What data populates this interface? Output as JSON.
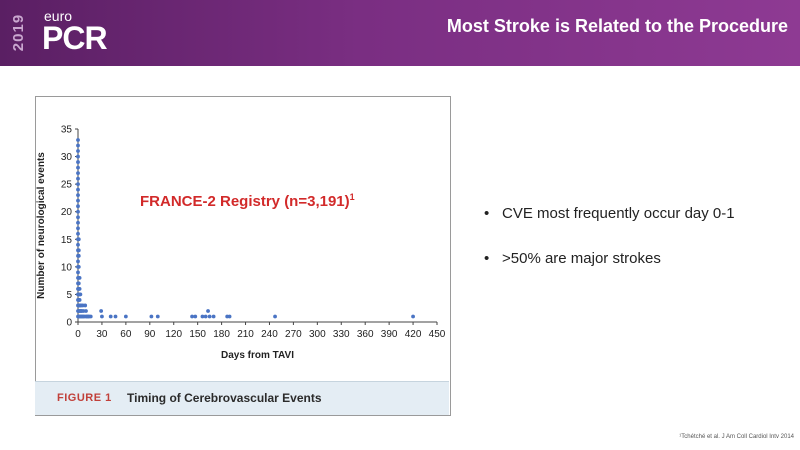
{
  "header": {
    "logo_year": "2019",
    "logo_euro": "euro",
    "logo_pcr": "PCR",
    "title": "Most Stroke is Related to the Procedure"
  },
  "figure": {
    "label": "FIGURE 1",
    "title": "Timing of Cerebrovascular Events",
    "annotation": "FRANCE-2 Registry (n=3,191)",
    "annotation_sup": "1"
  },
  "bullets": [
    "CVE most frequently occur day 0-1",
    ">50% are major strokes"
  ],
  "reference": "¹Tchétché et al. J Am Coll Cardiol Intv 2014",
  "colors": {
    "header_start": "#5a1f63",
    "header_end": "#8e3a93",
    "marker": "#4a74c4",
    "annotation": "#d22a2a"
  },
  "chart_data": {
    "type": "scatter",
    "title": "",
    "xlabel": "Days from TAVI",
    "ylabel": "Number of neurological events",
    "xlim": [
      0,
      450
    ],
    "ylim": [
      0,
      35
    ],
    "xticks": [
      0,
      30,
      60,
      90,
      120,
      150,
      180,
      210,
      240,
      270,
      300,
      330,
      360,
      390,
      420,
      450
    ],
    "yticks": [
      0,
      5,
      10,
      15,
      20,
      25,
      30,
      35
    ],
    "grid": false,
    "points": [
      {
        "x": 0,
        "y": 33
      },
      {
        "x": 0,
        "y": 32
      },
      {
        "x": 0,
        "y": 31
      },
      {
        "x": 0,
        "y": 30
      },
      {
        "x": 0,
        "y": 29
      },
      {
        "x": 0,
        "y": 28
      },
      {
        "x": 0,
        "y": 27
      },
      {
        "x": 0,
        "y": 26
      },
      {
        "x": 0,
        "y": 25
      },
      {
        "x": 0,
        "y": 24
      },
      {
        "x": 0,
        "y": 23
      },
      {
        "x": 0,
        "y": 22
      },
      {
        "x": 0,
        "y": 21
      },
      {
        "x": 0,
        "y": 20
      },
      {
        "x": 0,
        "y": 19
      },
      {
        "x": 0,
        "y": 18
      },
      {
        "x": 0,
        "y": 17
      },
      {
        "x": 0,
        "y": 16
      },
      {
        "x": 0,
        "y": 15
      },
      {
        "x": 0,
        "y": 14
      },
      {
        "x": 0,
        "y": 13
      },
      {
        "x": 0,
        "y": 12
      },
      {
        "x": 0,
        "y": 11
      },
      {
        "x": 0,
        "y": 10
      },
      {
        "x": 0,
        "y": 9
      },
      {
        "x": 0,
        "y": 8
      },
      {
        "x": 0,
        "y": 7
      },
      {
        "x": 0,
        "y": 6
      },
      {
        "x": 0,
        "y": 5
      },
      {
        "x": 0,
        "y": 4
      },
      {
        "x": 0,
        "y": 3
      },
      {
        "x": 0,
        "y": 2
      },
      {
        "x": 0,
        "y": 1
      },
      {
        "x": 1,
        "y": 15
      },
      {
        "x": 1,
        "y": 13
      },
      {
        "x": 1,
        "y": 12
      },
      {
        "x": 1,
        "y": 10
      },
      {
        "x": 1,
        "y": 8
      },
      {
        "x": 1,
        "y": 7
      },
      {
        "x": 1,
        "y": 6
      },
      {
        "x": 1,
        "y": 5
      },
      {
        "x": 1,
        "y": 4
      },
      {
        "x": 1,
        "y": 3
      },
      {
        "x": 1,
        "y": 2
      },
      {
        "x": 1,
        "y": 1
      },
      {
        "x": 2,
        "y": 8
      },
      {
        "x": 2,
        "y": 6
      },
      {
        "x": 2,
        "y": 5
      },
      {
        "x": 2,
        "y": 4
      },
      {
        "x": 2,
        "y": 3
      },
      {
        "x": 2,
        "y": 2
      },
      {
        "x": 2,
        "y": 1
      },
      {
        "x": 3,
        "y": 5
      },
      {
        "x": 3,
        "y": 3
      },
      {
        "x": 3,
        "y": 2
      },
      {
        "x": 3,
        "y": 1
      },
      {
        "x": 4,
        "y": 3
      },
      {
        "x": 4,
        "y": 2
      },
      {
        "x": 4,
        "y": 1
      },
      {
        "x": 5,
        "y": 2
      },
      {
        "x": 5,
        "y": 1
      },
      {
        "x": 6,
        "y": 3
      },
      {
        "x": 6,
        "y": 1
      },
      {
        "x": 7,
        "y": 2
      },
      {
        "x": 7,
        "y": 1
      },
      {
        "x": 8,
        "y": 1
      },
      {
        "x": 9,
        "y": 3
      },
      {
        "x": 10,
        "y": 2
      },
      {
        "x": 10,
        "y": 1
      },
      {
        "x": 11,
        "y": 1
      },
      {
        "x": 12,
        "y": 1
      },
      {
        "x": 13,
        "y": 1
      },
      {
        "x": 14,
        "y": 1
      },
      {
        "x": 16,
        "y": 1
      },
      {
        "x": 29,
        "y": 2
      },
      {
        "x": 30,
        "y": 1
      },
      {
        "x": 41,
        "y": 1
      },
      {
        "x": 47,
        "y": 1
      },
      {
        "x": 60,
        "y": 1
      },
      {
        "x": 92,
        "y": 1
      },
      {
        "x": 100,
        "y": 1
      },
      {
        "x": 143,
        "y": 1
      },
      {
        "x": 147,
        "y": 1
      },
      {
        "x": 156,
        "y": 1
      },
      {
        "x": 160,
        "y": 1
      },
      {
        "x": 163,
        "y": 2
      },
      {
        "x": 165,
        "y": 1
      },
      {
        "x": 170,
        "y": 1
      },
      {
        "x": 187,
        "y": 1
      },
      {
        "x": 190,
        "y": 1
      },
      {
        "x": 247,
        "y": 1
      },
      {
        "x": 420,
        "y": 1
      }
    ]
  }
}
